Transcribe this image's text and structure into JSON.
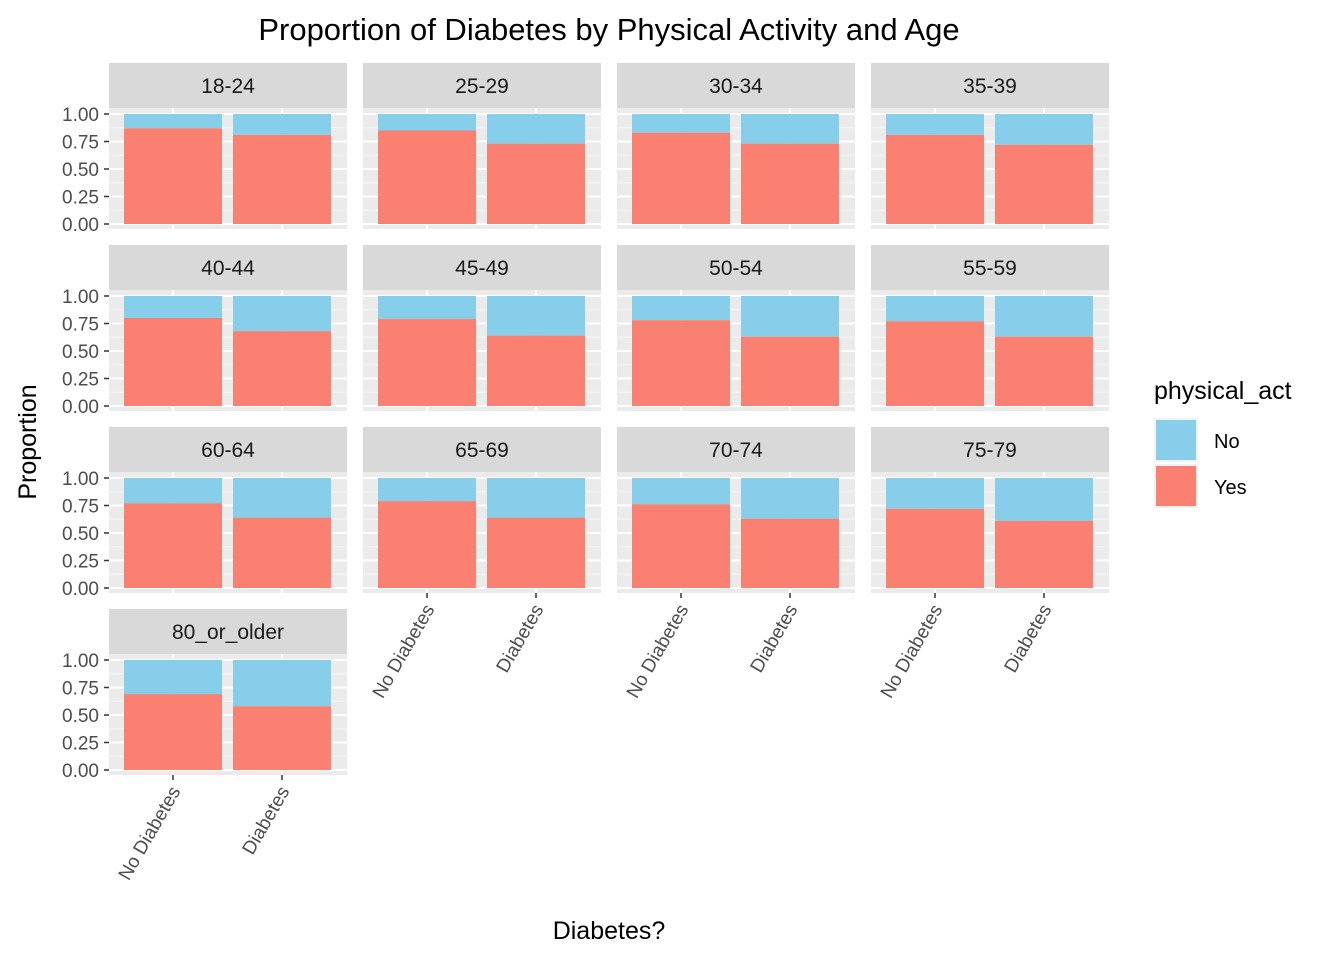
{
  "chart_data": {
    "type": "bar",
    "stacked": true,
    "title": "Proportion of Diabetes by Physical Activity and Age",
    "xlabel": "Diabetes?",
    "ylabel": "Proportion",
    "categories": [
      "No Diabetes",
      "Diabetes"
    ],
    "ylim": [
      0,
      1
    ],
    "yticks": [
      "0.00",
      "0.25",
      "0.50",
      "0.75",
      "1.00"
    ],
    "legend": {
      "title": "physical_act",
      "position": "right",
      "entries": [
        {
          "label": "No",
          "color": "#87CEEB"
        },
        {
          "label": "Yes",
          "color": "#FA8072"
        }
      ]
    },
    "facets": [
      {
        "label": "18-24",
        "yes": [
          0.87,
          0.81
        ]
      },
      {
        "label": "25-29",
        "yes": [
          0.85,
          0.73
        ]
      },
      {
        "label": "30-34",
        "yes": [
          0.83,
          0.73
        ]
      },
      {
        "label": "35-39",
        "yes": [
          0.81,
          0.72
        ]
      },
      {
        "label": "40-44",
        "yes": [
          0.8,
          0.68
        ]
      },
      {
        "label": "45-49",
        "yes": [
          0.79,
          0.64
        ]
      },
      {
        "label": "50-54",
        "yes": [
          0.78,
          0.63
        ]
      },
      {
        "label": "55-59",
        "yes": [
          0.77,
          0.63
        ]
      },
      {
        "label": "60-64",
        "yes": [
          0.77,
          0.64
        ]
      },
      {
        "label": "65-69",
        "yes": [
          0.79,
          0.64
        ]
      },
      {
        "label": "70-74",
        "yes": [
          0.76,
          0.63
        ]
      },
      {
        "label": "75-79",
        "yes": [
          0.72,
          0.61
        ]
      },
      {
        "label": "80_or_older",
        "yes": [
          0.69,
          0.58
        ]
      }
    ],
    "grid": true
  }
}
